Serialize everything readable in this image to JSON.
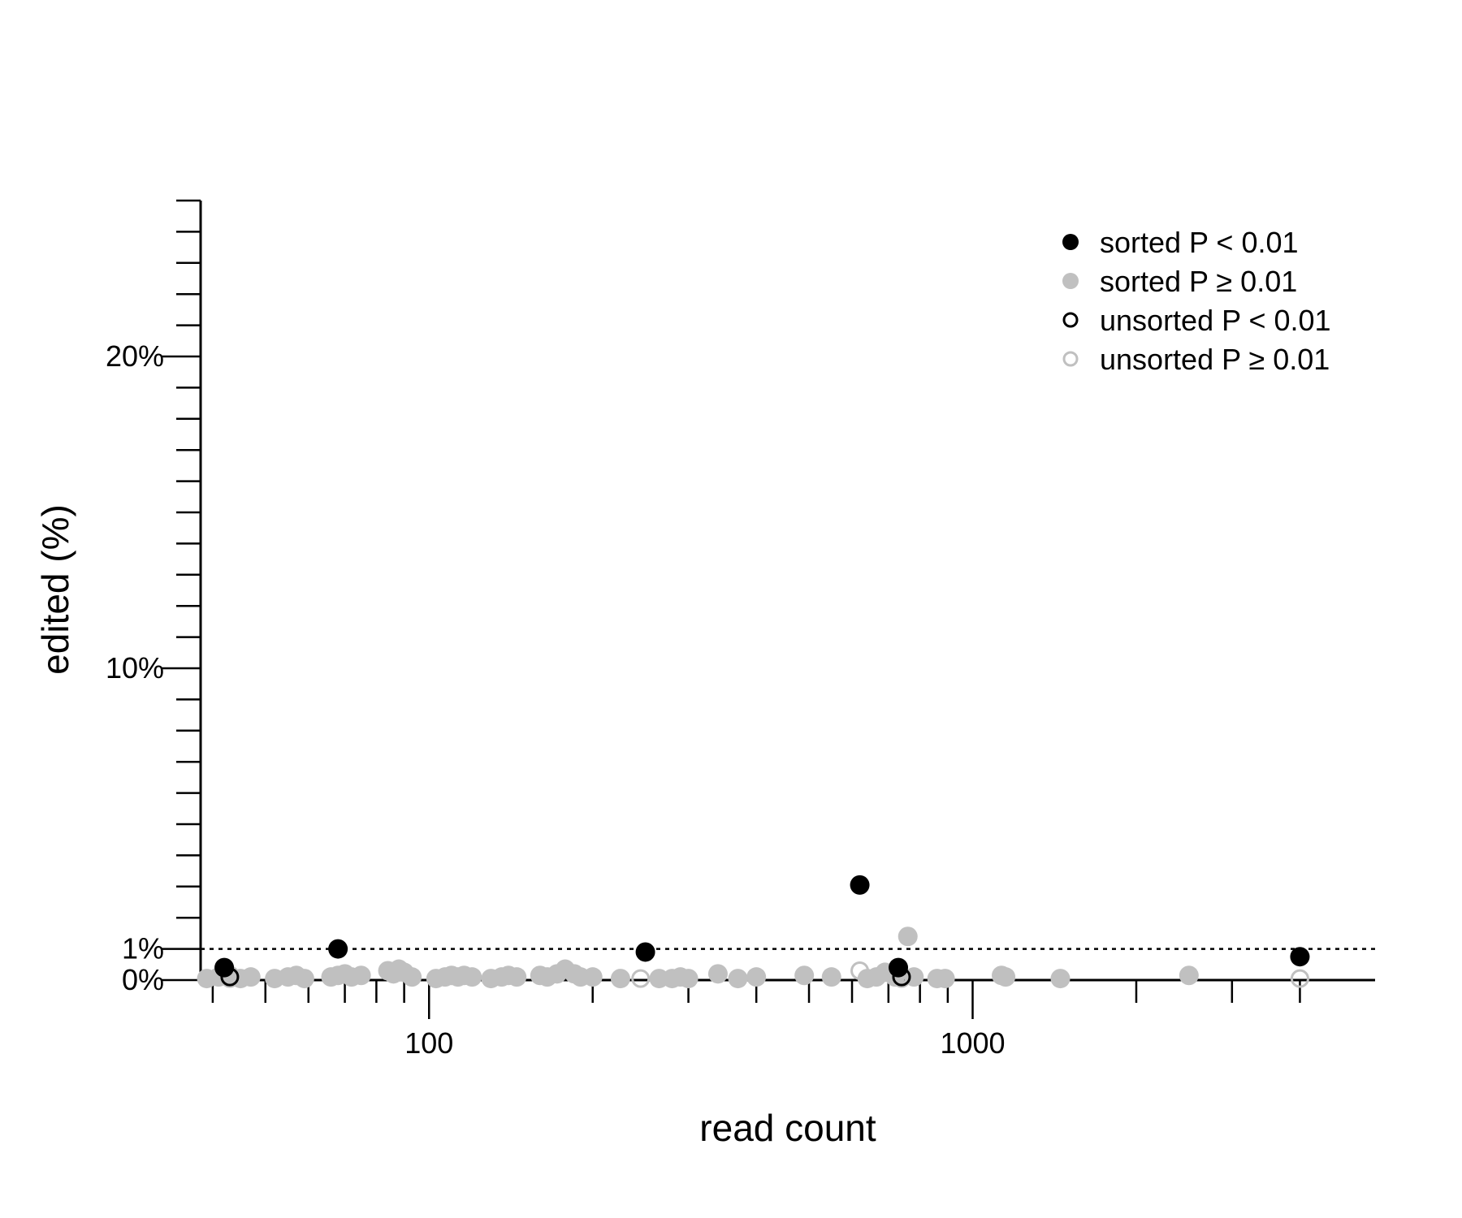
{
  "chart_data": {
    "type": "scatter",
    "title": "",
    "xlabel": "read count",
    "ylabel": "edited (%)",
    "x_scale": "log",
    "xlim": [
      38,
      5500
    ],
    "ylim": [
      0,
      25
    ],
    "x_ticks": [
      {
        "value": 40,
        "label": ""
      },
      {
        "value": 50,
        "label": ""
      },
      {
        "value": 60,
        "label": ""
      },
      {
        "value": 70,
        "label": ""
      },
      {
        "value": 80,
        "label": ""
      },
      {
        "value": 90,
        "label": ""
      },
      {
        "value": 100,
        "label": "100"
      },
      {
        "value": 200,
        "label": ""
      },
      {
        "value": 300,
        "label": ""
      },
      {
        "value": 400,
        "label": ""
      },
      {
        "value": 500,
        "label": ""
      },
      {
        "value": 600,
        "label": ""
      },
      {
        "value": 700,
        "label": ""
      },
      {
        "value": 800,
        "label": ""
      },
      {
        "value": 900,
        "label": ""
      },
      {
        "value": 1000,
        "label": "1000"
      },
      {
        "value": 2000,
        "label": ""
      },
      {
        "value": 3000,
        "label": ""
      },
      {
        "value": 4000,
        "label": ""
      }
    ],
    "y_ticks": [
      {
        "value": 0,
        "label": "0%"
      },
      {
        "value": 1,
        "label": "1%"
      },
      {
        "value": 2,
        "label": ""
      },
      {
        "value": 3,
        "label": ""
      },
      {
        "value": 4,
        "label": ""
      },
      {
        "value": 5,
        "label": ""
      },
      {
        "value": 6,
        "label": ""
      },
      {
        "value": 7,
        "label": ""
      },
      {
        "value": 8,
        "label": ""
      },
      {
        "value": 9,
        "label": ""
      },
      {
        "value": 10,
        "label": "10%"
      },
      {
        "value": 11,
        "label": ""
      },
      {
        "value": 12,
        "label": ""
      },
      {
        "value": 13,
        "label": ""
      },
      {
        "value": 14,
        "label": ""
      },
      {
        "value": 15,
        "label": ""
      },
      {
        "value": 16,
        "label": ""
      },
      {
        "value": 17,
        "label": ""
      },
      {
        "value": 18,
        "label": ""
      },
      {
        "value": 19,
        "label": ""
      },
      {
        "value": 20,
        "label": "20%"
      },
      {
        "value": 21,
        "label": ""
      },
      {
        "value": 22,
        "label": ""
      },
      {
        "value": 23,
        "label": ""
      },
      {
        "value": 24,
        "label": ""
      },
      {
        "value": 25,
        "label": ""
      }
    ],
    "reference_line": {
      "y": 1,
      "style": "dotted"
    },
    "grid": false,
    "legend": {
      "position": "top-right"
    },
    "series": [
      {
        "name": "sorted P ≥ 0.01",
        "marker": "filled",
        "color": "#c0c0c0",
        "points": [
          [
            39,
            0.05
          ],
          [
            41,
            0.1
          ],
          [
            43,
            0.15
          ],
          [
            45,
            0.05
          ],
          [
            47,
            0.1
          ],
          [
            52,
            0.05
          ],
          [
            55,
            0.1
          ],
          [
            57,
            0.15
          ],
          [
            59,
            0.05
          ],
          [
            66,
            0.1
          ],
          [
            68,
            0.15
          ],
          [
            70,
            0.2
          ],
          [
            72,
            0.1
          ],
          [
            75,
            0.15
          ],
          [
            84,
            0.3
          ],
          [
            86,
            0.2
          ],
          [
            88,
            0.35
          ],
          [
            90,
            0.25
          ],
          [
            93,
            0.1
          ],
          [
            103,
            0.05
          ],
          [
            107,
            0.1
          ],
          [
            110,
            0.15
          ],
          [
            113,
            0.1
          ],
          [
            116,
            0.15
          ],
          [
            120,
            0.1
          ],
          [
            130,
            0.05
          ],
          [
            136,
            0.1
          ],
          [
            140,
            0.15
          ],
          [
            145,
            0.1
          ],
          [
            160,
            0.15
          ],
          [
            165,
            0.1
          ],
          [
            172,
            0.2
          ],
          [
            178,
            0.35
          ],
          [
            185,
            0.2
          ],
          [
            190,
            0.1
          ],
          [
            200,
            0.1
          ],
          [
            225,
            0.05
          ],
          [
            265,
            0.05
          ],
          [
            280,
            0.05
          ],
          [
            290,
            0.1
          ],
          [
            300,
            0.05
          ],
          [
            340,
            0.2
          ],
          [
            370,
            0.05
          ],
          [
            400,
            0.1
          ],
          [
            490,
            0.15
          ],
          [
            550,
            0.1
          ],
          [
            640,
            0.05
          ],
          [
            665,
            0.1
          ],
          [
            690,
            0.25
          ],
          [
            720,
            0.1
          ],
          [
            760,
            1.4
          ],
          [
            780,
            0.1
          ],
          [
            860,
            0.05
          ],
          [
            890,
            0.05
          ],
          [
            1130,
            0.15
          ],
          [
            1150,
            0.1
          ],
          [
            1450,
            0.05
          ],
          [
            2500,
            0.15
          ]
        ]
      },
      {
        "name": "unsorted P ≥ 0.01",
        "marker": "open",
        "color": "#c0c0c0",
        "points": [
          [
            43,
            0.05
          ],
          [
            160,
            0.15
          ],
          [
            245,
            0.05
          ],
          [
            620,
            0.3
          ],
          [
            730,
            0.1
          ],
          [
            740,
            0.05
          ],
          [
            4000,
            0.05
          ]
        ]
      },
      {
        "name": "unsorted P < 0.01",
        "marker": "open",
        "color": "#000000",
        "points": [
          [
            43,
            0.1
          ],
          [
            740,
            0.1
          ]
        ]
      },
      {
        "name": "sorted P < 0.01",
        "marker": "filled",
        "color": "#000000",
        "points": [
          [
            42,
            0.4
          ],
          [
            68,
            1.0
          ],
          [
            250,
            0.9
          ],
          [
            620,
            3.05
          ],
          [
            730,
            0.4
          ],
          [
            4000,
            0.75
          ]
        ]
      }
    ],
    "legend_items": [
      {
        "label": "sorted P < 0.01",
        "marker": "filled",
        "color": "#000000"
      },
      {
        "label": "sorted P ≥ 0.01",
        "marker": "filled",
        "color": "#c0c0c0"
      },
      {
        "label": "unsorted P < 0.01",
        "marker": "open",
        "color": "#000000"
      },
      {
        "label": "unsorted P ≥ 0.01",
        "marker": "open",
        "color": "#c0c0c0"
      }
    ]
  }
}
